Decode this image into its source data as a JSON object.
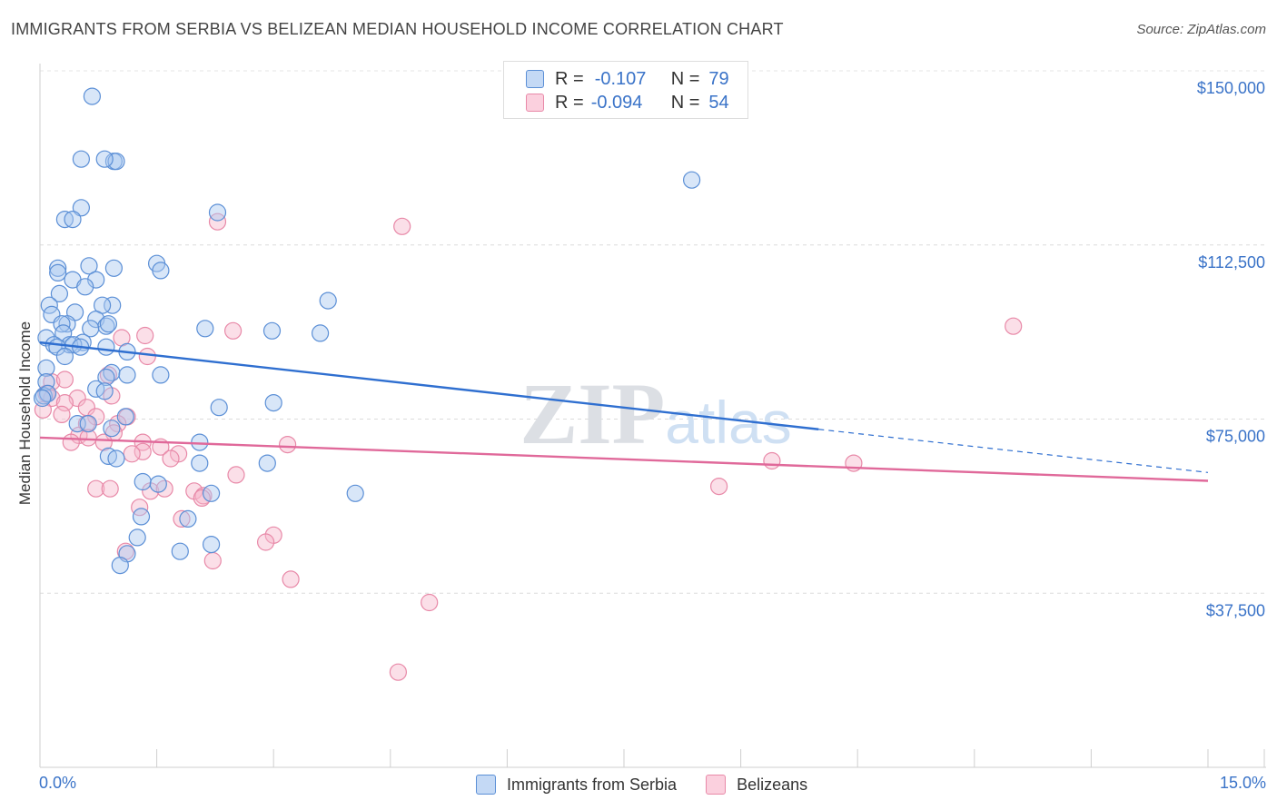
{
  "header": {
    "title": "IMMIGRANTS FROM SERBIA VS BELIZEAN MEDIAN HOUSEHOLD INCOME CORRELATION CHART",
    "source": "Source: ZipAtlas.com"
  },
  "legend_top": [
    {
      "r_label": "R =",
      "r_value": "-0.107",
      "n_label": "N =",
      "n_value": "79"
    },
    {
      "r_label": "R =",
      "r_value": "-0.094",
      "n_label": "N =",
      "n_value": "54"
    }
  ],
  "legend_bottom": [
    {
      "label": "Immigrants from Serbia"
    },
    {
      "label": "Belizeans"
    }
  ],
  "colors": {
    "serbia_fill": "#a9c8f0",
    "serbia_stroke": "#5b8fd6",
    "serbia_line": "#2f6fd0",
    "belize_fill": "#f7b8cc",
    "belize_stroke": "#e889a8",
    "belize_line": "#e0699a",
    "axis_label": "#3a73c8"
  },
  "axes": {
    "x_min_label": "0.0%",
    "x_max_label": "15.0%",
    "y_title": "Median Household Income"
  },
  "chart_data": {
    "type": "scatter",
    "title": "IMMIGRANTS FROM SERBIA VS BELIZEAN MEDIAN HOUSEHOLD INCOME CORRELATION CHART",
    "xlabel": "",
    "ylabel": "Median Household Income",
    "xlim": [
      0,
      15
    ],
    "ylim": [
      0,
      152000
    ],
    "y_ticks": [
      37500,
      75000,
      112500,
      150000
    ],
    "y_tick_labels": [
      "$37,500",
      "$75,000",
      "$112,500",
      "$150,000"
    ],
    "grid": true,
    "watermark": "ZIPatlas",
    "series": [
      {
        "name": "Immigrants from Serbia",
        "r": -0.107,
        "n": 79,
        "trend": {
          "x0": 0.0,
          "y0": 91500,
          "x1": 10.0,
          "y1": 72800,
          "dashed_to_x": 15.0,
          "dashed_to_y": 63500
        },
        "points": [
          [
            0.67,
            144500
          ],
          [
            0.53,
            131000
          ],
          [
            0.95,
            130500
          ],
          [
            0.98,
            130500
          ],
          [
            0.83,
            131000
          ],
          [
            0.53,
            120500
          ],
          [
            0.32,
            118000
          ],
          [
            0.42,
            118000
          ],
          [
            2.28,
            119500
          ],
          [
            0.63,
            108000
          ],
          [
            0.95,
            107500
          ],
          [
            0.23,
            107500
          ],
          [
            1.5,
            108500
          ],
          [
            1.55,
            107000
          ],
          [
            0.23,
            106500
          ],
          [
            0.42,
            105000
          ],
          [
            0.72,
            105000
          ],
          [
            0.58,
            103500
          ],
          [
            0.25,
            102000
          ],
          [
            0.12,
            99500
          ],
          [
            0.93,
            99500
          ],
          [
            0.8,
            99500
          ],
          [
            0.15,
            97500
          ],
          [
            0.45,
            98000
          ],
          [
            0.72,
            96500
          ],
          [
            0.35,
            95500
          ],
          [
            0.28,
            95500
          ],
          [
            0.85,
            95000
          ],
          [
            0.88,
            95500
          ],
          [
            2.12,
            94500
          ],
          [
            0.65,
            94500
          ],
          [
            0.3,
            93500
          ],
          [
            2.98,
            94000
          ],
          [
            3.6,
            93500
          ],
          [
            3.7,
            100500
          ],
          [
            0.08,
            92500
          ],
          [
            0.18,
            91000
          ],
          [
            0.55,
            91500
          ],
          [
            0.38,
            91000
          ],
          [
            0.43,
            91000
          ],
          [
            0.22,
            90500
          ],
          [
            0.52,
            90500
          ],
          [
            0.85,
            90500
          ],
          [
            1.12,
            89500
          ],
          [
            0.32,
            88500
          ],
          [
            0.08,
            86000
          ],
          [
            0.92,
            85000
          ],
          [
            1.55,
            84500
          ],
          [
            1.12,
            84500
          ],
          [
            0.85,
            84000
          ],
          [
            0.08,
            83000
          ],
          [
            0.72,
            81500
          ],
          [
            0.83,
            81000
          ],
          [
            0.05,
            80000
          ],
          [
            0.1,
            80500
          ],
          [
            3.0,
            78500
          ],
          [
            2.3,
            77500
          ],
          [
            1.1,
            75500
          ],
          [
            0.48,
            74000
          ],
          [
            0.62,
            74000
          ],
          [
            0.92,
            73000
          ],
          [
            2.05,
            70000
          ],
          [
            0.88,
            67000
          ],
          [
            0.98,
            66500
          ],
          [
            2.05,
            65500
          ],
          [
            2.92,
            65500
          ],
          [
            1.32,
            61500
          ],
          [
            1.52,
            61000
          ],
          [
            4.05,
            59000
          ],
          [
            2.2,
            59000
          ],
          [
            1.3,
            54000
          ],
          [
            1.9,
            53500
          ],
          [
            1.25,
            49500
          ],
          [
            2.2,
            48000
          ],
          [
            1.8,
            46500
          ],
          [
            1.12,
            46000
          ],
          [
            1.03,
            43500
          ],
          [
            8.37,
            126500
          ],
          [
            0.03,
            79500
          ]
        ]
      },
      {
        "name": "Belizeans",
        "r": -0.094,
        "n": 54,
        "trend": {
          "x0": 0.0,
          "y0": 71000,
          "x1": 15.0,
          "y1": 61700
        },
        "points": [
          [
            2.28,
            117500
          ],
          [
            4.65,
            116500
          ],
          [
            12.5,
            95000
          ],
          [
            2.48,
            94000
          ],
          [
            1.35,
            93000
          ],
          [
            1.05,
            92500
          ],
          [
            1.38,
            88500
          ],
          [
            0.15,
            83000
          ],
          [
            0.32,
            83500
          ],
          [
            0.88,
            84500
          ],
          [
            0.08,
            80500
          ],
          [
            0.15,
            79500
          ],
          [
            0.48,
            79500
          ],
          [
            0.92,
            80000
          ],
          [
            0.32,
            78500
          ],
          [
            0.6,
            77500
          ],
          [
            0.28,
            76000
          ],
          [
            0.72,
            75500
          ],
          [
            1.12,
            75500
          ],
          [
            0.6,
            74000
          ],
          [
            1.0,
            74000
          ],
          [
            0.95,
            72000
          ],
          [
            0.5,
            71500
          ],
          [
            0.62,
            71000
          ],
          [
            1.32,
            70000
          ],
          [
            0.4,
            70000
          ],
          [
            0.82,
            70000
          ],
          [
            1.55,
            69000
          ],
          [
            3.18,
            69500
          ],
          [
            1.32,
            68000
          ],
          [
            1.18,
            67500
          ],
          [
            1.78,
            67500
          ],
          [
            1.68,
            66500
          ],
          [
            9.4,
            66000
          ],
          [
            10.45,
            65500
          ],
          [
            2.52,
            63000
          ],
          [
            8.72,
            60500
          ],
          [
            0.72,
            60000
          ],
          [
            0.9,
            60000
          ],
          [
            1.42,
            59500
          ],
          [
            1.6,
            60000
          ],
          [
            1.98,
            59500
          ],
          [
            2.1,
            58500
          ],
          [
            2.08,
            58000
          ],
          [
            1.28,
            56000
          ],
          [
            1.82,
            53500
          ],
          [
            3.0,
            50000
          ],
          [
            2.9,
            48500
          ],
          [
            1.1,
            46500
          ],
          [
            2.22,
            44500
          ],
          [
            3.22,
            40500
          ],
          [
            5.0,
            35500
          ],
          [
            4.6,
            20500
          ],
          [
            0.04,
            77000
          ]
        ]
      }
    ]
  }
}
